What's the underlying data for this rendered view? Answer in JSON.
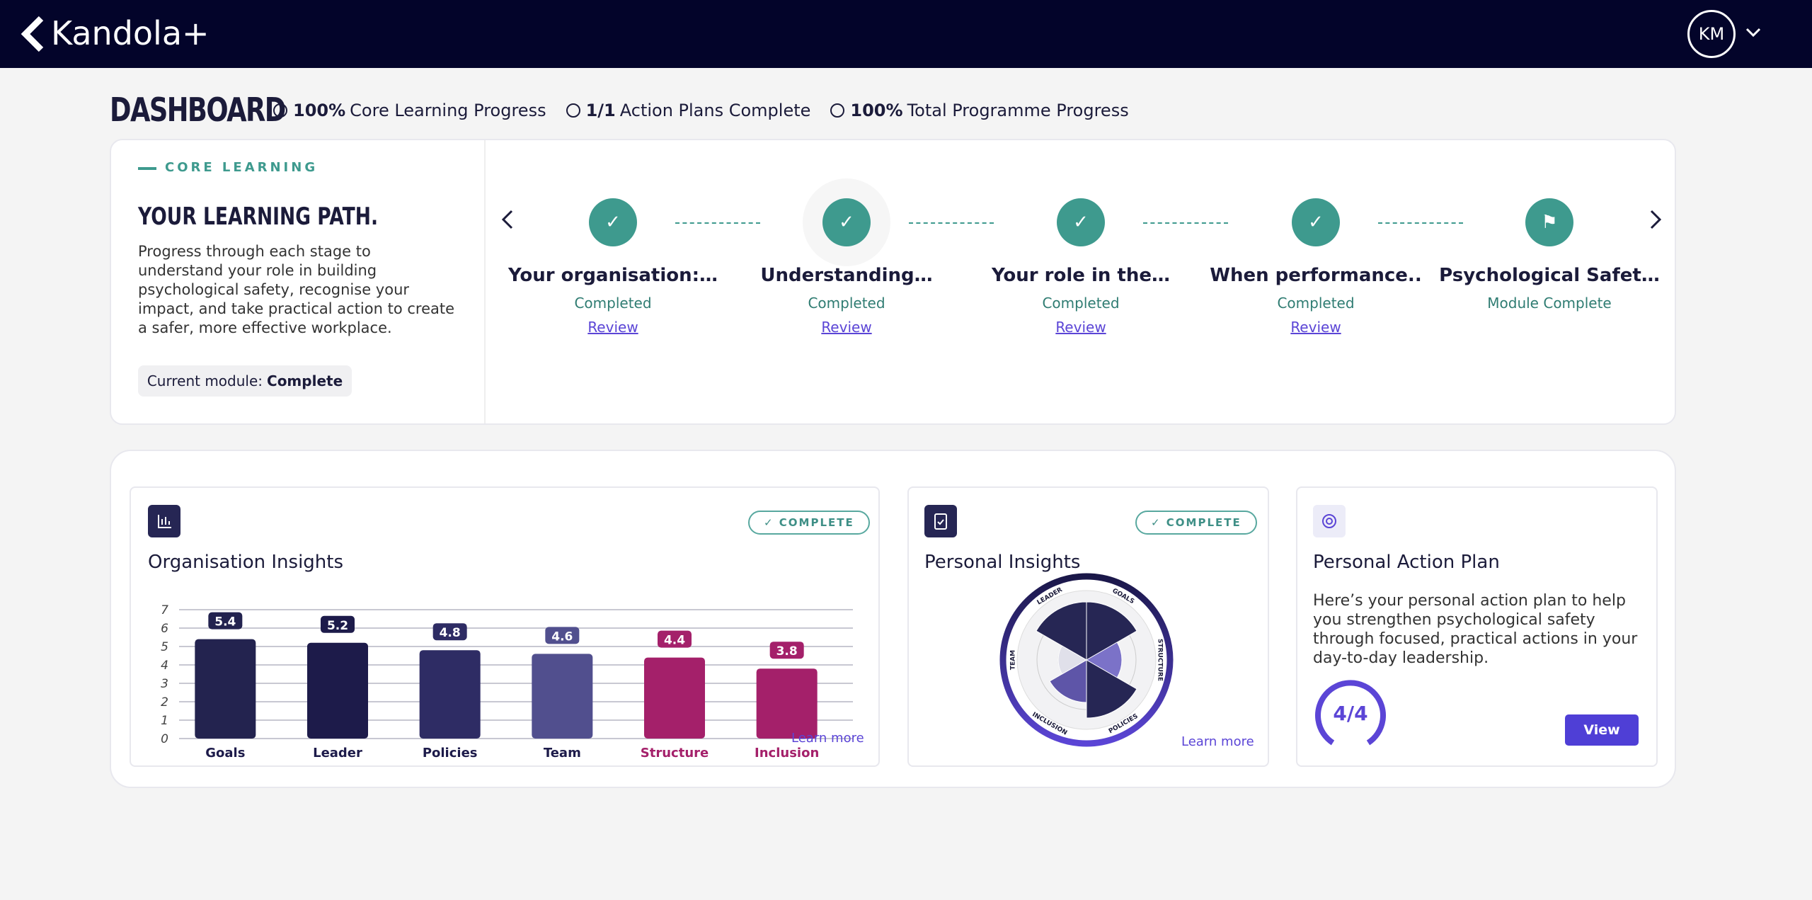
{
  "header": {
    "logo": "Kandola+",
    "avatar": "KM"
  },
  "dashboard": {
    "title": "DASHBOARD",
    "stats": [
      {
        "value": "100%",
        "label": "Core Learning Progress"
      },
      {
        "value": "1/1",
        "label": "Action Plans Complete"
      },
      {
        "value": "100%",
        "label": "Total Programme Progress"
      }
    ]
  },
  "core_learning": {
    "eyebrow": "CORE LEARNING",
    "title": "YOUR LEARNING PATH.",
    "description": "Progress through each stage to understand your role in building psychological safety, recognise your impact, and take practical action to create a safer, more effective workplace.",
    "current_module_label": "Current module:",
    "current_module_value": "Complete",
    "steps": [
      {
        "title": "Your organisation:…",
        "status": "Completed",
        "link": "Review"
      },
      {
        "title": "Understanding…",
        "status": "Completed",
        "link": "Review"
      },
      {
        "title": "Your role in the…",
        "status": "Completed",
        "link": "Review"
      },
      {
        "title": "When performance..",
        "status": "Completed",
        "link": "Review"
      },
      {
        "title": "Psychological Safet…",
        "status": "Module Complete"
      }
    ]
  },
  "org_insights": {
    "badge": "COMPLETE",
    "title": "Organisation Insights",
    "link": "Learn more"
  },
  "chart_data": {
    "type": "bar",
    "categories": [
      "Goals",
      "Leader",
      "Policies",
      "Team",
      "Structure",
      "Inclusion"
    ],
    "values": [
      5.4,
      5.2,
      4.8,
      4.6,
      4.4,
      3.8
    ],
    "colors": [
      "#23234f",
      "#1d1b4a",
      "#2e2c64",
      "#514f8e",
      "#a4206a",
      "#a4206a"
    ],
    "label_colors": [
      "#1d1b4a",
      "#1d1b4a",
      "#1d1b4a",
      "#1d1b4a",
      "#a4206a",
      "#a4206a"
    ],
    "ylim": [
      0,
      7
    ],
    "yticks": [
      0,
      1,
      2,
      3,
      4,
      5,
      6,
      7
    ],
    "grid": true
  },
  "personal_insights": {
    "badge": "COMPLETE",
    "title": "Personal Insights",
    "segments": [
      "LEADER",
      "GOALS",
      "STRUCTURE",
      "POLICIES",
      "INCLUSION",
      "TEAM"
    ],
    "link": "Learn more"
  },
  "action_plan": {
    "title": "Personal Action Plan",
    "description": "Here’s your personal action plan to help you strengthen psychological safety through focused, practical actions in your day-to-day leadership.",
    "progress": "4/4",
    "button": "View"
  }
}
